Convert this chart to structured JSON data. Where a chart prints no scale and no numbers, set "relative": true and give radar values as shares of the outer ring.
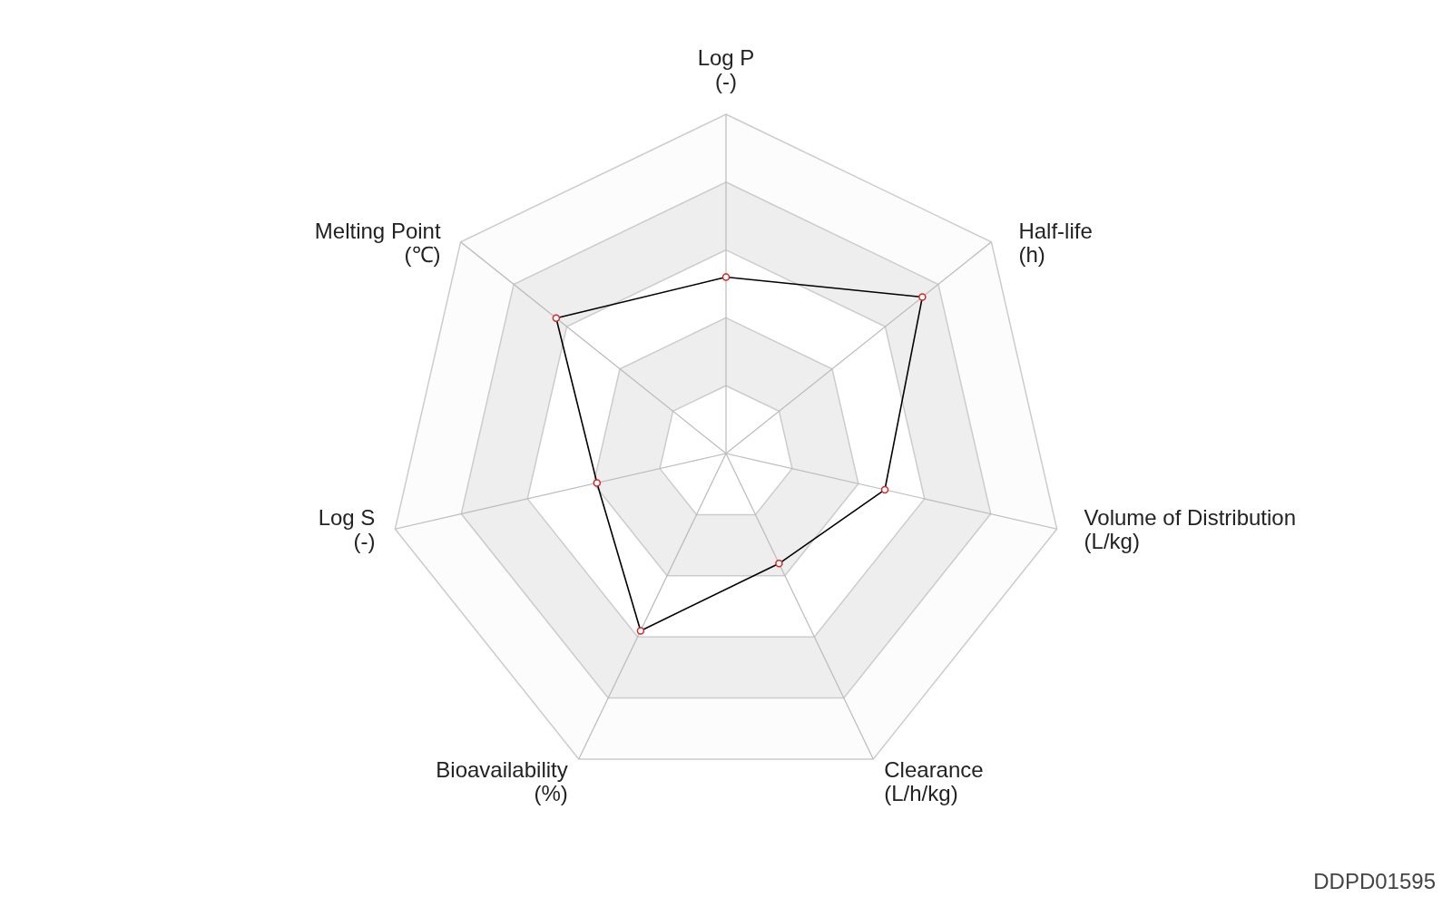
{
  "chart_data": {
    "type": "radar",
    "relative": true,
    "categories": [
      "Log P\n(-)",
      "Half-life\n(h)",
      "Volume of Distribution\n(L/kg)",
      "Clearance\n(L/h/kg)",
      "Bioavailability\n(%)",
      "Log S\n(-)",
      "Melting Point\n(℃)"
    ],
    "series": [
      {
        "color": "#000000",
        "values": [
          0.52,
          0.74,
          0.48,
          0.36,
          0.58,
          0.39,
          0.64
        ]
      }
    ],
    "marker": "circle",
    "grid": true,
    "annotations": [
      "DDPD01595"
    ]
  }
}
